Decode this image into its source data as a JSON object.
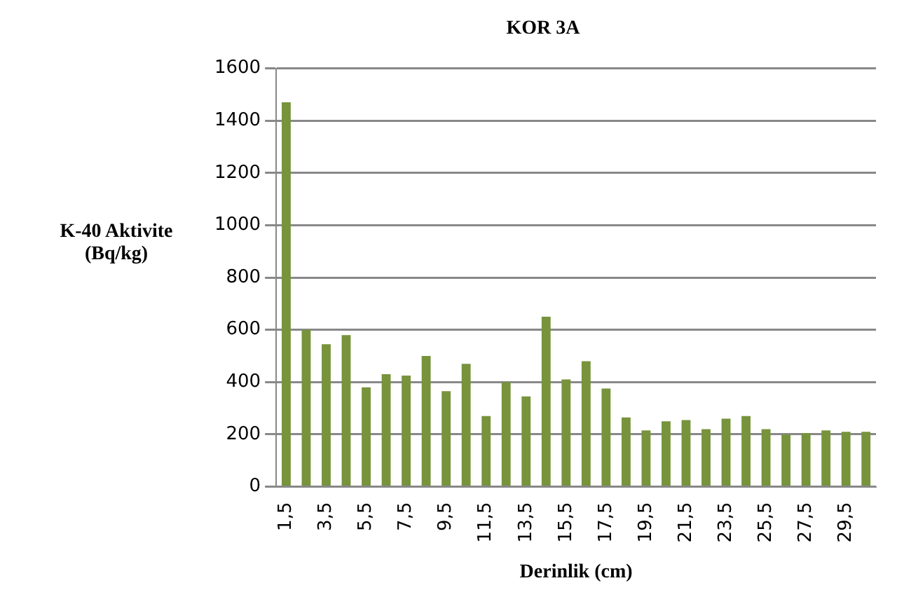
{
  "chart_data": {
    "type": "bar",
    "title": "KOR 3A",
    "xlabel": "Derinlik (cm)",
    "ylabel": "K-40 Aktivite (Bq/kg)",
    "categories": [
      "1,5",
      null,
      "3,5",
      null,
      "5,5",
      null,
      "7,5",
      null,
      "9,5",
      null,
      "11,5",
      null,
      "13,5",
      null,
      "15,5",
      null,
      "17,5",
      null,
      "19,5",
      null,
      "21,5",
      null,
      "23,5",
      null,
      "25,5",
      null,
      "27,5",
      null,
      "29,5",
      null
    ],
    "values": [
      1470,
      600,
      545,
      580,
      380,
      430,
      425,
      500,
      365,
      470,
      270,
      400,
      345,
      650,
      410,
      480,
      375,
      265,
      215,
      250,
      255,
      220,
      260,
      270,
      220,
      200,
      205,
      215,
      210,
      210
    ],
    "color": "#77933c",
    "ylim": [
      0,
      1600
    ],
    "yticks": [
      0,
      200,
      400,
      600,
      800,
      1000,
      1200,
      1400,
      1600
    ],
    "grid": "y",
    "legend": false
  }
}
